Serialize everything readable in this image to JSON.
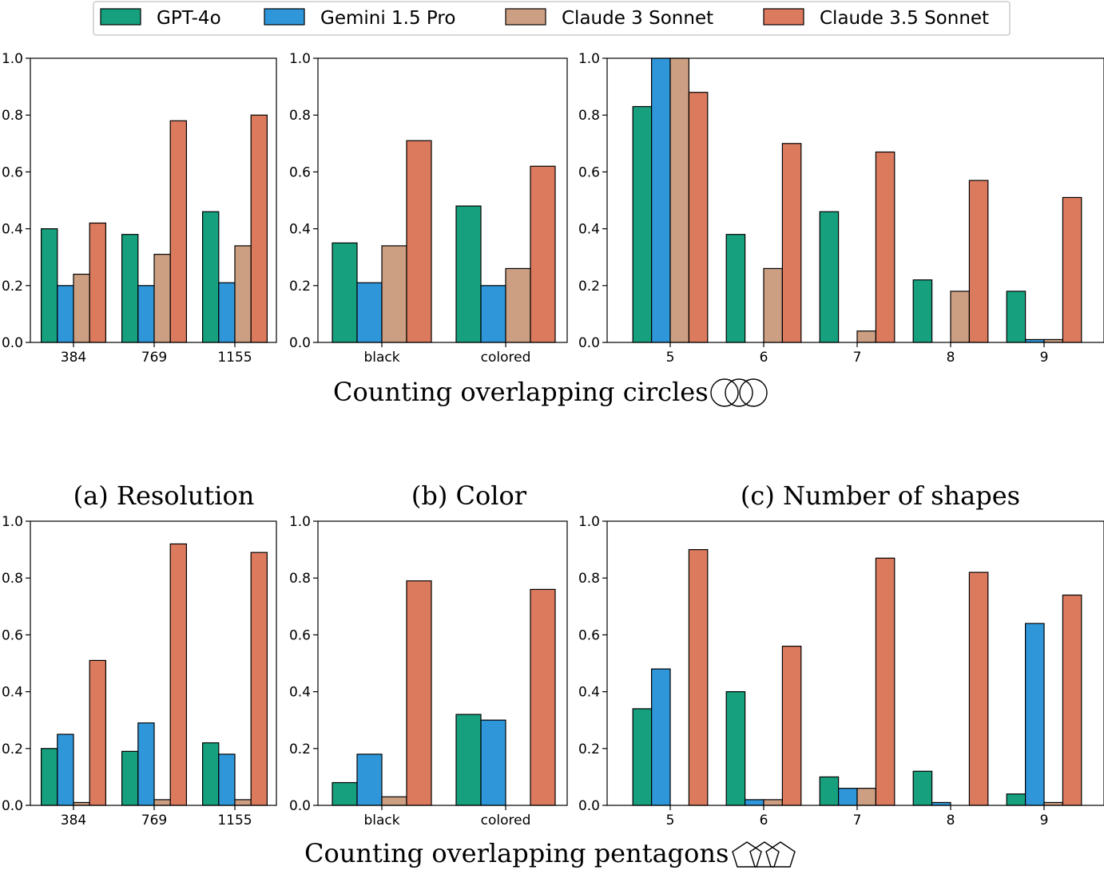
{
  "legend": [
    {
      "name": "GPT-4o",
      "color": "#17a07e"
    },
    {
      "name": "Gemini 1.5 Pro",
      "color": "#2f97d9"
    },
    {
      "name": "Claude 3 Sonnet",
      "color": "#cd9f82"
    },
    {
      "name": "Claude 3.5 Sonnet",
      "color": "#dc7a5e"
    }
  ],
  "row_titles": {
    "top": "Counting overlapping circles",
    "bottom": "Counting overlapping pentagons"
  },
  "subplot_captions": [
    "(a) Resolution",
    "(b) Color",
    "(c) Number of shapes"
  ],
  "y_ticks": [
    "0.0",
    "0.2",
    "0.4",
    "0.6",
    "0.8",
    "1.0"
  ],
  "chart_data": [
    {
      "type": "bar",
      "row": "circles",
      "panel": "Resolution",
      "categories": [
        "384",
        "769",
        "1155"
      ],
      "ylim": [
        0,
        1
      ],
      "series": [
        {
          "name": "GPT-4o",
          "values": [
            0.4,
            0.38,
            0.46
          ]
        },
        {
          "name": "Gemini 1.5 Pro",
          "values": [
            0.2,
            0.2,
            0.21
          ]
        },
        {
          "name": "Claude 3 Sonnet",
          "values": [
            0.24,
            0.31,
            0.34
          ]
        },
        {
          "name": "Claude 3.5 Sonnet",
          "values": [
            0.42,
            0.78,
            0.8
          ]
        }
      ]
    },
    {
      "type": "bar",
      "row": "circles",
      "panel": "Color",
      "categories": [
        "black",
        "colored"
      ],
      "ylim": [
        0,
        1
      ],
      "series": [
        {
          "name": "GPT-4o",
          "values": [
            0.35,
            0.48
          ]
        },
        {
          "name": "Gemini 1.5 Pro",
          "values": [
            0.21,
            0.2
          ]
        },
        {
          "name": "Claude 3 Sonnet",
          "values": [
            0.34,
            0.26
          ]
        },
        {
          "name": "Claude 3.5 Sonnet",
          "values": [
            0.71,
            0.62
          ]
        }
      ]
    },
    {
      "type": "bar",
      "row": "circles",
      "panel": "Number of shapes",
      "categories": [
        "5",
        "6",
        "7",
        "8",
        "9"
      ],
      "ylim": [
        0,
        1
      ],
      "series": [
        {
          "name": "GPT-4o",
          "values": [
            0.83,
            0.38,
            0.46,
            0.22,
            0.18
          ]
        },
        {
          "name": "Gemini 1.5 Pro",
          "values": [
            1.0,
            0.0,
            0.0,
            0.0,
            0.01
          ]
        },
        {
          "name": "Claude 3 Sonnet",
          "values": [
            1.0,
            0.26,
            0.04,
            0.18,
            0.01
          ]
        },
        {
          "name": "Claude 3.5 Sonnet",
          "values": [
            0.88,
            0.7,
            0.67,
            0.57,
            0.51
          ]
        }
      ]
    },
    {
      "type": "bar",
      "row": "pentagons",
      "panel": "Resolution",
      "categories": [
        "384",
        "769",
        "1155"
      ],
      "ylim": [
        0,
        1
      ],
      "series": [
        {
          "name": "GPT-4o",
          "values": [
            0.2,
            0.19,
            0.22
          ]
        },
        {
          "name": "Gemini 1.5 Pro",
          "values": [
            0.25,
            0.29,
            0.18
          ]
        },
        {
          "name": "Claude 3 Sonnet",
          "values": [
            0.01,
            0.02,
            0.02
          ]
        },
        {
          "name": "Claude 3.5 Sonnet",
          "values": [
            0.51,
            0.92,
            0.89
          ]
        }
      ]
    },
    {
      "type": "bar",
      "row": "pentagons",
      "panel": "Color",
      "categories": [
        "black",
        "colored"
      ],
      "ylim": [
        0,
        1
      ],
      "series": [
        {
          "name": "GPT-4o",
          "values": [
            0.08,
            0.32
          ]
        },
        {
          "name": "Gemini 1.5 Pro",
          "values": [
            0.18,
            0.3
          ]
        },
        {
          "name": "Claude 3 Sonnet",
          "values": [
            0.03,
            0.0
          ]
        },
        {
          "name": "Claude 3.5 Sonnet",
          "values": [
            0.79,
            0.76
          ]
        }
      ]
    },
    {
      "type": "bar",
      "row": "pentagons",
      "panel": "Number of shapes",
      "categories": [
        "5",
        "6",
        "7",
        "8",
        "9"
      ],
      "ylim": [
        0,
        1
      ],
      "series": [
        {
          "name": "GPT-4o",
          "values": [
            0.34,
            0.4,
            0.1,
            0.12,
            0.04
          ]
        },
        {
          "name": "Gemini 1.5 Pro",
          "values": [
            0.48,
            0.02,
            0.06,
            0.01,
            0.64
          ]
        },
        {
          "name": "Claude 3 Sonnet",
          "values": [
            0.0,
            0.02,
            0.06,
            0.0,
            0.01
          ]
        },
        {
          "name": "Claude 3.5 Sonnet",
          "values": [
            0.9,
            0.56,
            0.87,
            0.82,
            0.74
          ]
        }
      ]
    }
  ]
}
